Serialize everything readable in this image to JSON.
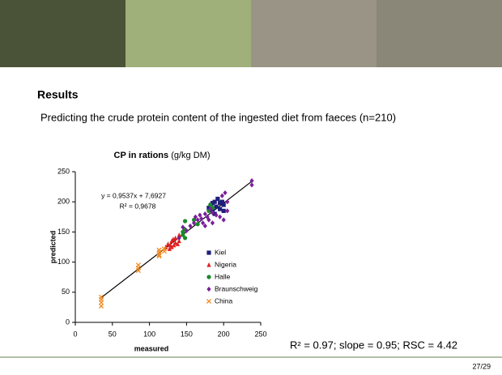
{
  "slide": {
    "heading": "Results",
    "subtitle": "Predicting the crude protein content of the ingested diet from faeces (n=210)",
    "summary": "R² = 0.97; slope = 0.95; RSC = 4.42",
    "page": "27/29"
  },
  "chart_data": {
    "type": "scatter",
    "title": "CP in rations",
    "title_unit": "(g/kg DM)",
    "x_label": "measured",
    "y_label": "predicted",
    "xlim": [
      0,
      250
    ],
    "ylim": [
      0,
      250
    ],
    "xticks": [
      0,
      50,
      100,
      150,
      200,
      250
    ],
    "yticks": [
      0,
      50,
      100,
      150,
      200,
      250
    ],
    "annotations": [
      "y = 0,9537x + 7,6927",
      "R² = 0,9678"
    ],
    "trendline": {
      "color": "#000000",
      "x": [
        35,
        240
      ],
      "values": [
        41,
        236
      ]
    },
    "series": [
      {
        "name": "Kiel",
        "color": "#1f1f7a",
        "marker": "square",
        "x": [
          180,
          183,
          185,
          188,
          190,
          192,
          195,
          195,
          198,
          200,
          200,
          185,
          188
        ],
        "values": [
          190,
          195,
          198,
          200,
          192,
          205,
          198,
          188,
          200,
          195,
          185,
          185,
          180
        ]
      },
      {
        "name": "Nigeria",
        "color": "#e02020",
        "marker": "triangle",
        "x": [
          122,
          125,
          128,
          130,
          130,
          132,
          135,
          135,
          138,
          140,
          140,
          127,
          133
        ],
        "values": [
          125,
          130,
          128,
          135,
          125,
          138,
          132,
          140,
          130,
          145,
          135,
          122,
          128
        ]
      },
      {
        "name": "Halle",
        "color": "#1a8a2a",
        "marker": "circle",
        "x": [
          145,
          145,
          147,
          148,
          148,
          160,
          165,
          180,
          182,
          185
        ],
        "values": [
          150,
          145,
          155,
          140,
          168,
          170,
          163,
          185,
          195,
          190
        ]
      },
      {
        "name": "Braunschweig",
        "color": "#7a1f9a",
        "marker": "diamond",
        "x": [
          140,
          145,
          150,
          155,
          160,
          162,
          165,
          168,
          170,
          172,
          175,
          178,
          180,
          182,
          185,
          190,
          195,
          198,
          200,
          202,
          205,
          205,
          238,
          238,
          185,
          175
        ],
        "values": [
          140,
          158,
          152,
          160,
          165,
          175,
          170,
          178,
          172,
          165,
          180,
          175,
          170,
          188,
          182,
          178,
          175,
          210,
          170,
          215,
          200,
          185,
          235,
          228,
          165,
          160
        ]
      },
      {
        "name": "China",
        "color": "#f08a20",
        "marker": "x",
        "x": [
          35,
          35,
          35,
          35,
          85,
          85,
          85,
          113,
          113,
          113,
          113,
          120,
          120
        ],
        "values": [
          42,
          38,
          33,
          27,
          95,
          90,
          86,
          120,
          116,
          112,
          110,
          122,
          118
        ]
      }
    ]
  }
}
